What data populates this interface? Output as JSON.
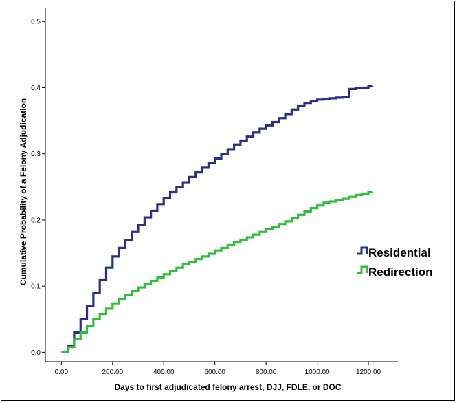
{
  "chart_data": {
    "type": "line",
    "xlabel": "Days to first adjudicated felony arrest, DJJ, FDLE, or DOC",
    "ylabel": "Cumulative Probability of a Felony Adjudication",
    "xlim": [
      -60,
      1310
    ],
    "ylim": [
      -0.01,
      0.52
    ],
    "x_ticks": [
      {
        "value": 0,
        "label": "0.00"
      },
      {
        "value": 200,
        "label": "200.00"
      },
      {
        "value": 400,
        "label": "400.00"
      },
      {
        "value": 600,
        "label": "600.00"
      },
      {
        "value": 800,
        "label": "800.00"
      },
      {
        "value": 1000,
        "label": "1000.00"
      },
      {
        "value": 1200,
        "label": "1200.00"
      }
    ],
    "y_ticks": [
      {
        "value": 0.0,
        "label": "0.0"
      },
      {
        "value": 0.1,
        "label": "0.1"
      },
      {
        "value": 0.2,
        "label": "0.2"
      },
      {
        "value": 0.3,
        "label": "0.3"
      },
      {
        "value": 0.4,
        "label": "0.4"
      },
      {
        "value": 0.5,
        "label": "0.5"
      }
    ],
    "grid": false,
    "legend_position": "right",
    "series": [
      {
        "name": "Residential",
        "color": "#2b2f86",
        "step": true,
        "x": [
          0,
          25,
          50,
          75,
          100,
          125,
          150,
          175,
          200,
          225,
          250,
          275,
          300,
          325,
          350,
          375,
          400,
          425,
          450,
          475,
          500,
          525,
          550,
          575,
          600,
          625,
          650,
          675,
          700,
          725,
          750,
          775,
          800,
          825,
          850,
          875,
          900,
          925,
          950,
          975,
          1000,
          1025,
          1050,
          1075,
          1100,
          1125,
          1150,
          1175,
          1200,
          1215
        ],
        "y": [
          0.0,
          0.01,
          0.03,
          0.05,
          0.07,
          0.09,
          0.11,
          0.128,
          0.145,
          0.158,
          0.17,
          0.182,
          0.193,
          0.204,
          0.214,
          0.224,
          0.233,
          0.242,
          0.25,
          0.257,
          0.265,
          0.272,
          0.279,
          0.286,
          0.293,
          0.3,
          0.307,
          0.314,
          0.32,
          0.326,
          0.332,
          0.338,
          0.343,
          0.348,
          0.354,
          0.36,
          0.367,
          0.373,
          0.377,
          0.38,
          0.382,
          0.383,
          0.384,
          0.385,
          0.386,
          0.398,
          0.399,
          0.4,
          0.402,
          0.403
        ]
      },
      {
        "name": "Redirection",
        "color": "#2fbf3b",
        "step": true,
        "x": [
          0,
          25,
          50,
          75,
          100,
          125,
          150,
          175,
          200,
          225,
          250,
          275,
          300,
          325,
          350,
          375,
          400,
          425,
          450,
          475,
          500,
          525,
          550,
          575,
          600,
          625,
          650,
          675,
          700,
          725,
          750,
          775,
          800,
          825,
          850,
          875,
          900,
          925,
          950,
          975,
          1000,
          1025,
          1050,
          1075,
          1100,
          1125,
          1150,
          1175,
          1200,
          1215
        ],
        "y": [
          0.0,
          0.008,
          0.02,
          0.03,
          0.04,
          0.05,
          0.058,
          0.066,
          0.074,
          0.081,
          0.087,
          0.093,
          0.098,
          0.103,
          0.108,
          0.113,
          0.118,
          0.123,
          0.128,
          0.133,
          0.137,
          0.141,
          0.145,
          0.149,
          0.154,
          0.158,
          0.162,
          0.166,
          0.17,
          0.174,
          0.178,
          0.182,
          0.186,
          0.19,
          0.194,
          0.198,
          0.203,
          0.208,
          0.213,
          0.218,
          0.222,
          0.226,
          0.228,
          0.23,
          0.232,
          0.235,
          0.238,
          0.24,
          0.242,
          0.243
        ]
      }
    ]
  }
}
